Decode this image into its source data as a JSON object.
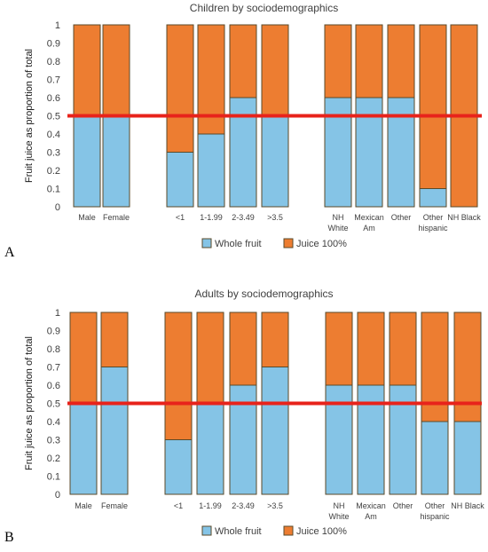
{
  "panels": [
    {
      "letter": "A",
      "chart_data": {
        "type": "bar",
        "stacked": true,
        "title": "Children by sociodemographics",
        "ylabel": "Fruit juice as proportion of total",
        "ylim": [
          0,
          1
        ],
        "yticks": [
          "0",
          "0.1",
          "0.2",
          "0.3",
          "0.4",
          "0.5",
          "0.6",
          "0.7",
          "0.8",
          "0.9",
          "1"
        ],
        "categories": [
          "Male",
          "Female",
          "",
          "<1",
          "1-1.99",
          "2-3.49",
          ">3.5",
          "",
          "NH White",
          "Mexican Am",
          "Other",
          "Other hispanic",
          "NH Black"
        ],
        "category_lines": [
          [
            "Male"
          ],
          [
            "Female"
          ],
          [],
          [
            "<1"
          ],
          [
            "1-1.99"
          ],
          [
            "2-3.49"
          ],
          [
            ">3.5"
          ],
          [],
          [
            "NH",
            "White"
          ],
          [
            "Mexican",
            "Am"
          ],
          [
            "Other"
          ],
          [
            "Other",
            "hispanic"
          ],
          [
            "NH Black"
          ]
        ],
        "series": [
          {
            "name": "Whole fruit",
            "color": "#85c4e6",
            "values": [
              0.5,
              0.5,
              null,
              0.3,
              0.4,
              0.6,
              0.5,
              null,
              0.6,
              0.6,
              0.6,
              0.1,
              0.0
            ]
          },
          {
            "name": "Juice 100%",
            "color": "#ed7d31",
            "values": [
              0.5,
              0.5,
              null,
              0.7,
              0.6,
              0.4,
              0.5,
              null,
              0.4,
              0.4,
              0.4,
              0.9,
              1.0
            ]
          }
        ],
        "reference_line": {
          "y": 0.5,
          "color": "#e8231b"
        },
        "legend_position": "bottom"
      }
    },
    {
      "letter": "B",
      "chart_data": {
        "type": "bar",
        "stacked": true,
        "title": "Adults by sociodemographics",
        "ylabel": "Fruit juice as proportion of total",
        "ylim": [
          0,
          1
        ],
        "yticks": [
          "0",
          "0.1",
          "0.2",
          "0.3",
          "0.4",
          "0.5",
          "0.6",
          "0.7",
          "0.8",
          "0.9",
          "1"
        ],
        "categories": [
          "Male",
          "Female",
          "",
          "<1",
          "1-1.99",
          "2-3.49",
          ">3.5",
          "",
          "NH White",
          "Mexican Am",
          "Other",
          "Other hispanic",
          "NH Black"
        ],
        "category_lines": [
          [
            "Male"
          ],
          [
            "Female"
          ],
          [],
          [
            "<1"
          ],
          [
            "1-1.99"
          ],
          [
            "2-3.49"
          ],
          [
            ">3.5"
          ],
          [],
          [
            "NH",
            "White"
          ],
          [
            "Mexican",
            "Am"
          ],
          [
            "Other"
          ],
          [
            "Other",
            "hispanic"
          ],
          [
            "NH Black"
          ]
        ],
        "series": [
          {
            "name": "Whole fruit",
            "color": "#85c4e6",
            "values": [
              0.5,
              0.7,
              null,
              0.3,
              0.5,
              0.6,
              0.7,
              null,
              0.6,
              0.6,
              0.6,
              0.4,
              0.4
            ]
          },
          {
            "name": "Juice 100%",
            "color": "#ed7d31",
            "values": [
              0.5,
              0.3,
              null,
              0.7,
              0.5,
              0.4,
              0.3,
              null,
              0.4,
              0.4,
              0.4,
              0.6,
              0.6
            ]
          }
        ],
        "reference_line": {
          "y": 0.5,
          "color": "#e8231b"
        },
        "legend_position": "bottom"
      }
    }
  ]
}
